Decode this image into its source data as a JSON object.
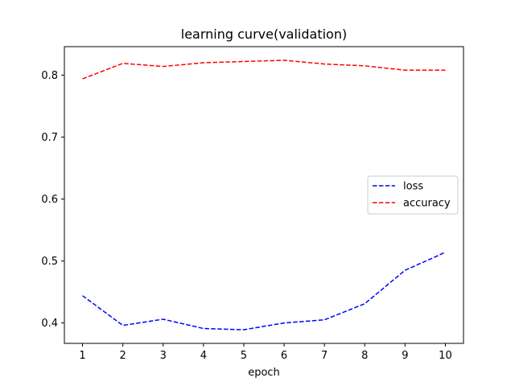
{
  "chart_data": {
    "type": "line",
    "title": "learning curve(validation)",
    "xlabel": "epoch",
    "ylabel": "",
    "x": [
      1,
      2,
      3,
      4,
      5,
      6,
      7,
      8,
      9,
      10
    ],
    "xlim": [
      0.55,
      10.45
    ],
    "ylim": [
      0.367,
      0.846
    ],
    "yticks": [
      0.4,
      0.5,
      0.6,
      0.7,
      0.8
    ],
    "ytick_labels": [
      "0.4",
      "0.5",
      "0.6",
      "0.7",
      "0.8"
    ],
    "xticks": [
      1,
      2,
      3,
      4,
      5,
      6,
      7,
      8,
      9,
      10
    ],
    "xtick_labels": [
      "1",
      "2",
      "3",
      "4",
      "5",
      "6",
      "7",
      "8",
      "9",
      "10"
    ],
    "grid": false,
    "legend_position": "center-right",
    "series": [
      {
        "name": "loss",
        "color": "#0000ff",
        "line_style": "dashed",
        "values": [
          0.444,
          0.396,
          0.406,
          0.391,
          0.389,
          0.4,
          0.405,
          0.431,
          0.485,
          0.514
        ]
      },
      {
        "name": "accuracy",
        "color": "#ff0000",
        "line_style": "dashed",
        "values": [
          0.794,
          0.819,
          0.814,
          0.82,
          0.822,
          0.824,
          0.818,
          0.815,
          0.808,
          0.808
        ]
      }
    ]
  }
}
